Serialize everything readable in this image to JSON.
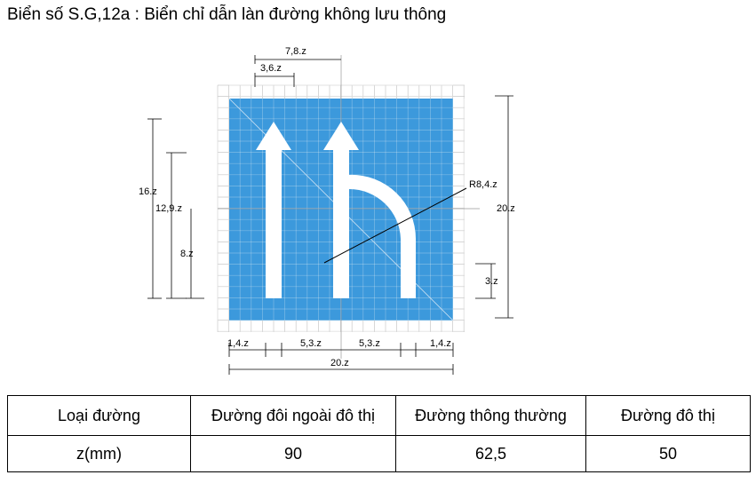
{
  "title": "Biển số S.G,12a : Biển chỉ dẫn làn đường không lưu thông",
  "colors": {
    "sign_blue": "#2b90d9",
    "grid": "#c8c8c8",
    "arrow": "#ffffff"
  },
  "dimensions": {
    "top_outer": "7,8.z",
    "top_inner": "3,6.z",
    "left_outer": "16.z",
    "left_middle": "12,9.z",
    "left_inner": "8.z",
    "right_total": "20.z",
    "right_small": "3.z",
    "radius": "R8,4.z",
    "bottom_left": "1,4.z",
    "bottom_mid_left": "5,3.z",
    "bottom_mid_right": "5,3.z",
    "bottom_right": "1,4.z",
    "bottom_total": "20.z"
  },
  "table": {
    "header": [
      "Loại đường",
      "Đường đôi ngoài đô thị",
      "Đường thông thường",
      "Đường đô thị"
    ],
    "row": [
      "z(mm)",
      "90",
      "62,5",
      "50"
    ]
  }
}
